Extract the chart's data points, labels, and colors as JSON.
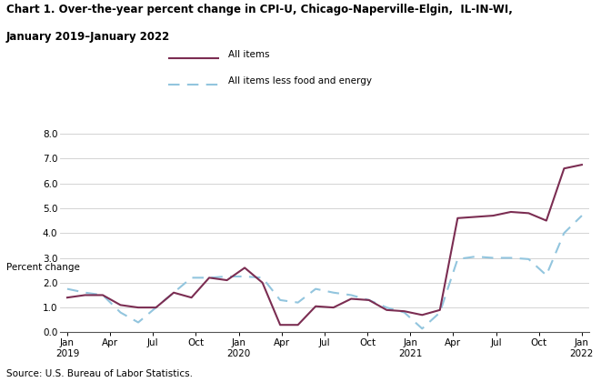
{
  "title_line1": "Chart 1. Over-the-year percent change in CPI-U, Chicago-Naperville-Elgin,  IL-IN-WI,",
  "title_line2": "January 2019–January 2022",
  "ylabel": "Percent change",
  "source": "Source: U.S. Bureau of Labor Statistics.",
  "ylim": [
    0.0,
    8.0
  ],
  "yticks": [
    0.0,
    1.0,
    2.0,
    3.0,
    4.0,
    5.0,
    6.0,
    7.0,
    8.0
  ],
  "xtick_labels": [
    "Jan\n2019",
    "Apr",
    "Jul",
    "Oct",
    "Jan\n2020",
    "Apr",
    "Jul",
    "Oct",
    "Jan\n2021",
    "Apr",
    "Jul",
    "Oct",
    "Jan\n2022"
  ],
  "xtick_positions": [
    0,
    3,
    6,
    9,
    12,
    15,
    18,
    21,
    24,
    27,
    30,
    33,
    36
  ],
  "all_items": [
    1.4,
    1.5,
    1.5,
    1.1,
    1.0,
    1.0,
    1.6,
    1.4,
    2.2,
    2.1,
    2.6,
    2.0,
    0.3,
    0.3,
    1.05,
    1.0,
    1.35,
    1.3,
    0.9,
    0.85,
    0.7,
    0.9,
    4.6,
    4.65,
    4.7,
    4.85,
    4.8,
    4.5,
    6.6,
    6.75
  ],
  "core_items": [
    1.75,
    1.6,
    1.5,
    0.8,
    0.4,
    1.0,
    1.6,
    2.2,
    2.2,
    2.25,
    2.25,
    2.2,
    1.3,
    1.2,
    1.75,
    1.6,
    1.5,
    1.3,
    1.0,
    0.8,
    0.15,
    0.8,
    2.95,
    3.05,
    3.0,
    3.0,
    2.95,
    2.3,
    4.0,
    4.7
  ],
  "all_items_color": "#7B2D52",
  "core_items_color": "#92C5DE",
  "bg_color": "#ffffff",
  "legend_all": "All items",
  "legend_core": "All items less food and energy"
}
